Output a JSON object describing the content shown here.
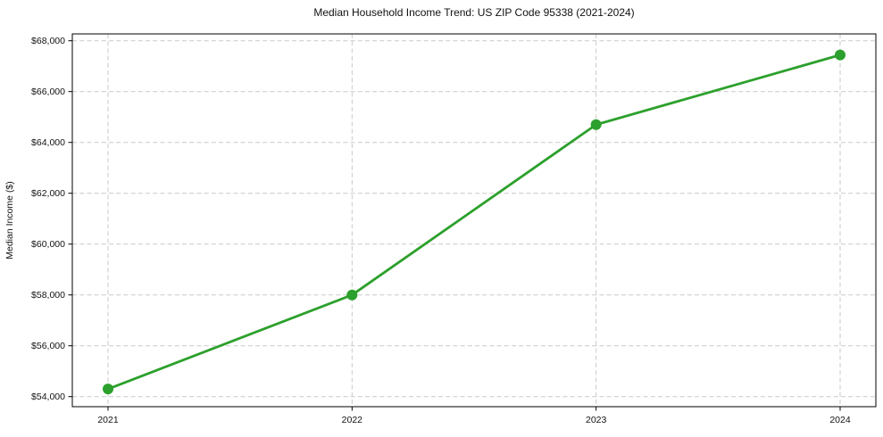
{
  "chart_data": {
    "type": "line",
    "title": "Median Household Income Trend: US ZIP Code 95338 (2021-2024)",
    "xlabel": "",
    "ylabel": "Median Income ($)",
    "categories": [
      "2021",
      "2022",
      "2023",
      "2024"
    ],
    "series": [
      {
        "name": "Median Household Income",
        "values": [
          54300,
          58000,
          64700,
          67440
        ]
      }
    ],
    "values": [
      54300,
      58000,
      64700,
      67440
    ],
    "ylim": [
      53604,
      68270
    ],
    "yticks": [
      54000,
      56000,
      58000,
      60000,
      62000,
      64000,
      66000,
      68000
    ],
    "ytick_labels": [
      "$54,000",
      "$56,000",
      "$58,000",
      "$60,000",
      "$62,000",
      "$64,000",
      "$66,000",
      "$68,000"
    ],
    "grid": true,
    "grid_style": "dashed",
    "grid_color": "#c9c9c9",
    "line_color": "#2ca02c",
    "marker": "circle",
    "marker_color": "#2ca02c",
    "background_color": "#ffffff",
    "legend_position": "none"
  }
}
